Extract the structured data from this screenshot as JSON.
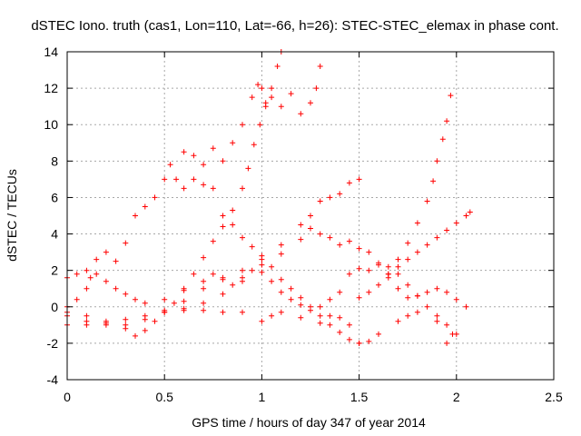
{
  "chart_data": {
    "type": "scatter",
    "title": "dSTEC Iono. truth (cas1, Lon=110, Lat=-66, h=26): STEC-STEC_elemax in phase cont.",
    "xlabel": "GPS time / hours of day 347 of year 2014",
    "ylabel": "dSTEC  / TECUs",
    "xlim": [
      0,
      2.5
    ],
    "ylim": [
      -4,
      14
    ],
    "xticks": [
      0,
      0.5,
      1,
      1.5,
      2,
      2.5
    ],
    "xtick_labels": [
      "0",
      "0.5",
      "1",
      "1.5",
      "2",
      "2.5"
    ],
    "yticks": [
      -4,
      -2,
      0,
      2,
      4,
      6,
      8,
      10,
      12,
      14
    ],
    "ytick_labels": [
      "-4",
      "-2",
      "0",
      "2",
      "4",
      "6",
      "8",
      "10",
      "12",
      "14"
    ],
    "grid": true,
    "marker": "+",
    "color": "#ff0000",
    "series": [
      {
        "name": "s1",
        "points": [
          [
            0.0,
            -1.0
          ],
          [
            0.1,
            -1.0
          ],
          [
            0.2,
            -0.9
          ],
          [
            0.3,
            -1.2
          ],
          [
            0.35,
            -1.6
          ],
          [
            0.4,
            -1.3
          ],
          [
            0.45,
            -0.8
          ],
          [
            0.5,
            -0.3
          ],
          [
            0.55,
            0.2
          ],
          [
            0.6,
            1.0
          ],
          [
            0.65,
            1.8
          ],
          [
            0.7,
            2.7
          ],
          [
            0.75,
            3.6
          ],
          [
            0.8,
            4.4
          ],
          [
            0.85,
            5.3
          ],
          [
            0.9,
            6.5
          ],
          [
            0.93,
            7.6
          ],
          [
            0.96,
            8.9
          ],
          [
            0.99,
            10.0
          ],
          [
            1.02,
            11.0
          ],
          [
            1.05,
            12.0
          ],
          [
            1.08,
            13.2
          ],
          [
            1.1,
            14.0
          ]
        ]
      },
      {
        "name": "s2",
        "points": [
          [
            0.0,
            -0.3
          ],
          [
            0.05,
            0.4
          ],
          [
            0.1,
            1.0
          ],
          [
            0.12,
            1.6
          ],
          [
            0.15,
            2.6
          ],
          [
            0.2,
            3.0
          ],
          [
            0.25,
            2.5
          ],
          [
            0.3,
            3.5
          ],
          [
            0.35,
            5.0
          ],
          [
            0.4,
            5.5
          ],
          [
            0.45,
            6.0
          ],
          [
            0.5,
            7.0
          ],
          [
            0.53,
            7.8
          ],
          [
            0.56,
            7.0
          ],
          [
            0.6,
            6.5
          ],
          [
            0.65,
            7.0
          ],
          [
            0.7,
            6.7
          ],
          [
            0.75,
            8.7
          ],
          [
            0.8,
            8.0
          ],
          [
            0.85,
            9.0
          ],
          [
            0.9,
            10.0
          ],
          [
            0.95,
            11.5
          ],
          [
            0.98,
            12.2
          ],
          [
            1.0,
            12.0
          ],
          [
            1.02,
            11.2
          ],
          [
            1.05,
            11.5
          ],
          [
            1.1,
            11.0
          ],
          [
            1.15,
            11.7
          ],
          [
            1.2,
            10.6
          ],
          [
            1.25,
            11.2
          ],
          [
            1.28,
            12.0
          ],
          [
            1.3,
            13.2
          ]
        ]
      },
      {
        "name": "s3",
        "points": [
          [
            0.0,
            -0.5
          ],
          [
            0.1,
            -0.8
          ],
          [
            0.2,
            -1.0
          ],
          [
            0.3,
            -0.7
          ],
          [
            0.4,
            -0.5
          ],
          [
            0.5,
            -0.2
          ],
          [
            0.6,
            -0.1
          ],
          [
            0.7,
            -0.2
          ],
          [
            0.8,
            -0.3
          ],
          [
            0.9,
            -0.3
          ],
          [
            1.0,
            -0.8
          ],
          [
            1.05,
            -0.5
          ],
          [
            1.1,
            -0.3
          ],
          [
            1.2,
            -0.6
          ],
          [
            1.3,
            -0.9
          ],
          [
            1.35,
            -0.5
          ],
          [
            1.4,
            -0.6
          ],
          [
            1.45,
            -1.0
          ],
          [
            1.5,
            -2.0
          ],
          [
            1.55,
            -1.9
          ],
          [
            1.6,
            -1.5
          ],
          [
            1.7,
            -0.8
          ],
          [
            1.75,
            -0.5
          ],
          [
            1.8,
            -0.3
          ],
          [
            1.9,
            -0.8
          ],
          [
            1.95,
            -2.0
          ],
          [
            2.0,
            -1.5
          ]
        ]
      },
      {
        "name": "s4",
        "points": [
          [
            0.0,
            1.6
          ],
          [
            0.05,
            1.8
          ],
          [
            0.1,
            2.0
          ],
          [
            0.15,
            1.8
          ],
          [
            0.2,
            1.4
          ],
          [
            0.25,
            1.0
          ],
          [
            0.3,
            0.7
          ],
          [
            0.35,
            0.4
          ],
          [
            0.4,
            0.2
          ],
          [
            0.5,
            0.4
          ],
          [
            0.6,
            0.9
          ],
          [
            0.7,
            1.4
          ],
          [
            0.75,
            1.8
          ],
          [
            0.8,
            1.6
          ],
          [
            0.85,
            1.2
          ],
          [
            0.9,
            1.6
          ],
          [
            0.95,
            2.0
          ],
          [
            1.0,
            1.9
          ],
          [
            1.05,
            1.4
          ],
          [
            1.1,
            0.8
          ],
          [
            1.15,
            0.4
          ],
          [
            1.2,
            0.1
          ],
          [
            1.25,
            -0.2
          ],
          [
            1.3,
            0.0
          ],
          [
            1.35,
            0.4
          ],
          [
            1.4,
            0.8
          ],
          [
            1.45,
            1.8
          ],
          [
            1.5,
            2.1
          ],
          [
            1.55,
            2.0
          ],
          [
            1.6,
            2.4
          ],
          [
            1.65,
            2.2
          ],
          [
            1.7,
            1.8
          ],
          [
            1.75,
            1.2
          ],
          [
            1.8,
            0.6
          ],
          [
            1.85,
            0.0
          ],
          [
            1.9,
            -0.5
          ],
          [
            1.95,
            -1.0
          ],
          [
            1.98,
            -1.5
          ]
        ]
      },
      {
        "name": "s5",
        "points": [
          [
            0.0,
            0.0
          ],
          [
            0.1,
            -0.5
          ],
          [
            0.2,
            -0.8
          ],
          [
            0.3,
            -1.0
          ],
          [
            0.4,
            -0.7
          ],
          [
            0.5,
            -0.3
          ],
          [
            0.6,
            0.3
          ],
          [
            0.7,
            1.0
          ],
          [
            0.8,
            1.5
          ],
          [
            0.9,
            2.0
          ],
          [
            1.0,
            2.6
          ],
          [
            1.1,
            3.4
          ],
          [
            1.2,
            4.5
          ],
          [
            1.25,
            5.0
          ],
          [
            1.3,
            5.8
          ],
          [
            1.35,
            6.0
          ],
          [
            1.4,
            6.2
          ],
          [
            1.45,
            6.8
          ],
          [
            1.5,
            7.0
          ]
        ]
      },
      {
        "name": "s6",
        "points": [
          [
            0.6,
            8.5
          ],
          [
            0.65,
            8.3
          ],
          [
            0.7,
            7.8
          ],
          [
            0.75,
            6.5
          ],
          [
            0.8,
            5.0
          ],
          [
            0.85,
            4.5
          ],
          [
            0.9,
            3.8
          ],
          [
            0.95,
            3.3
          ],
          [
            1.0,
            2.8
          ],
          [
            1.05,
            2.2
          ],
          [
            1.1,
            1.5
          ],
          [
            1.15,
            1.0
          ],
          [
            1.2,
            0.5
          ],
          [
            1.25,
            0.0
          ],
          [
            1.3,
            -0.5
          ],
          [
            1.35,
            -1.0
          ],
          [
            1.4,
            -1.4
          ],
          [
            1.45,
            -1.8
          ],
          [
            1.5,
            -2.0
          ]
        ]
      },
      {
        "name": "s7",
        "points": [
          [
            0.6,
            -0.2
          ],
          [
            0.7,
            0.2
          ],
          [
            0.8,
            0.7
          ],
          [
            0.9,
            1.4
          ],
          [
            1.0,
            2.3
          ],
          [
            1.1,
            2.9
          ],
          [
            1.2,
            3.7
          ],
          [
            1.25,
            4.3
          ],
          [
            1.3,
            4.0
          ],
          [
            1.35,
            3.8
          ],
          [
            1.4,
            3.4
          ],
          [
            1.45,
            3.6
          ],
          [
            1.5,
            3.2
          ],
          [
            1.55,
            3.0
          ],
          [
            1.6,
            2.3
          ],
          [
            1.65,
            1.6
          ],
          [
            1.7,
            1.0
          ],
          [
            1.75,
            0.5
          ],
          [
            1.8,
            0.6
          ],
          [
            1.85,
            0.8
          ],
          [
            1.9,
            1.0
          ],
          [
            1.95,
            0.8
          ],
          [
            2.0,
            0.4
          ],
          [
            2.05,
            0.0
          ]
        ]
      },
      {
        "name": "s8",
        "points": [
          [
            1.5,
            0.5
          ],
          [
            1.55,
            0.8
          ],
          [
            1.6,
            1.2
          ],
          [
            1.65,
            1.8
          ],
          [
            1.7,
            2.6
          ],
          [
            1.75,
            3.5
          ],
          [
            1.8,
            4.6
          ],
          [
            1.85,
            5.8
          ],
          [
            1.88,
            6.9
          ],
          [
            1.9,
            8.0
          ],
          [
            1.93,
            9.2
          ],
          [
            1.95,
            10.2
          ],
          [
            1.97,
            11.6
          ]
        ]
      },
      {
        "name": "s9",
        "points": [
          [
            1.65,
            1.8
          ],
          [
            1.7,
            2.2
          ],
          [
            1.75,
            2.6
          ],
          [
            1.8,
            3.0
          ],
          [
            1.85,
            3.4
          ],
          [
            1.9,
            3.8
          ],
          [
            1.95,
            4.2
          ],
          [
            2.0,
            4.6
          ],
          [
            2.05,
            5.0
          ],
          [
            2.07,
            5.2
          ]
        ]
      }
    ]
  }
}
